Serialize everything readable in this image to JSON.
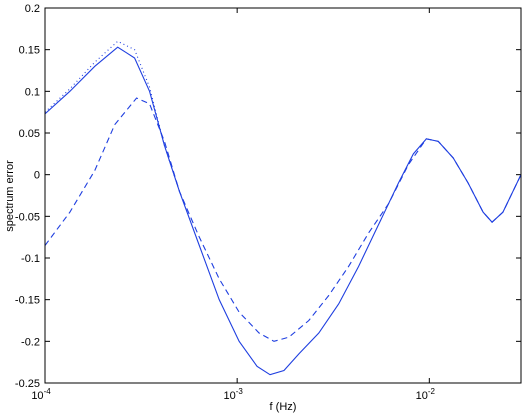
{
  "chart_data": {
    "type": "line",
    "xlabel": "f (Hz)",
    "ylabel": "spectrum error",
    "xscale": "log",
    "xlim": [
      0.0001,
      0.03
    ],
    "ylim": [
      -0.25,
      0.2
    ],
    "xticks": [
      {
        "value": 0.0001,
        "label": "10",
        "exponent": "-4"
      },
      {
        "value": 0.001,
        "label": "10",
        "exponent": "-3"
      },
      {
        "value": 0.01,
        "label": "10",
        "exponent": "-2"
      }
    ],
    "yticks": [
      0.2,
      0.15,
      0.1,
      0.05,
      0,
      -0.05,
      -0.1,
      -0.15,
      -0.2,
      -0.25
    ],
    "grid": false,
    "series": [
      {
        "color": "#1f3fe0",
        "dash": "solid",
        "x": [
          0.0001,
          0.0001347,
          0.0001816,
          0.0002389,
          0.0002926,
          0.00035,
          0.0004184,
          0.0005006,
          0.0006353,
          0.0008065,
          0.001024,
          0.001269,
          0.001483,
          0.001752,
          0.002095,
          0.00266,
          0.003377,
          0.004286,
          0.005441,
          0.006909,
          0.00826,
          0.00965,
          0.01113,
          0.01332,
          0.01592,
          0.01905,
          0.02121,
          0.02416,
          0.03
        ],
        "values": [
          0.073,
          0.1,
          0.13,
          0.153,
          0.14,
          0.1,
          0.035,
          -0.02,
          -0.085,
          -0.15,
          -0.2,
          -0.23,
          -0.24,
          -0.235,
          -0.215,
          -0.19,
          -0.155,
          -0.11,
          -0.06,
          -0.01,
          0.025,
          0.043,
          0.04,
          0.02,
          -0.01,
          -0.045,
          -0.057,
          -0.045,
          0
        ]
      },
      {
        "color": "#1f3fe0",
        "dash": "dotted",
        "x": [
          0.0001,
          0.0001347,
          0.0001816,
          0.0002389,
          0.0002926,
          0.00035,
          0.0004184,
          0.0005006
        ],
        "values": [
          0.075,
          0.103,
          0.135,
          0.16,
          0.15,
          0.105,
          0.035,
          -0.02
        ]
      },
      {
        "color": "#1f3fe0",
        "dash": "dashed",
        "x": [
          0.0001,
          0.0001347,
          0.0001816,
          0.0002306,
          0.0002997,
          0.00035,
          0.0004184,
          0.0005006,
          0.0006353,
          0.0008065,
          0.001024,
          0.0013,
          0.001555,
          0.001859,
          0.00236,
          0.002996,
          0.003804,
          0.00483,
          0.006131,
          0.007784,
          0.00965,
          0.01113,
          0.01332,
          0.01592,
          0.01905,
          0.02121,
          0.02416,
          0.03
        ],
        "values": [
          -0.085,
          -0.045,
          0.005,
          0.06,
          0.092,
          0.085,
          0.04,
          -0.02,
          -0.075,
          -0.125,
          -0.165,
          -0.19,
          -0.2,
          -0.195,
          -0.175,
          -0.145,
          -0.11,
          -0.07,
          -0.035,
          0.012,
          0.043,
          0.04,
          0.02,
          -0.01,
          -0.045,
          -0.057,
          -0.045,
          0
        ]
      }
    ]
  }
}
